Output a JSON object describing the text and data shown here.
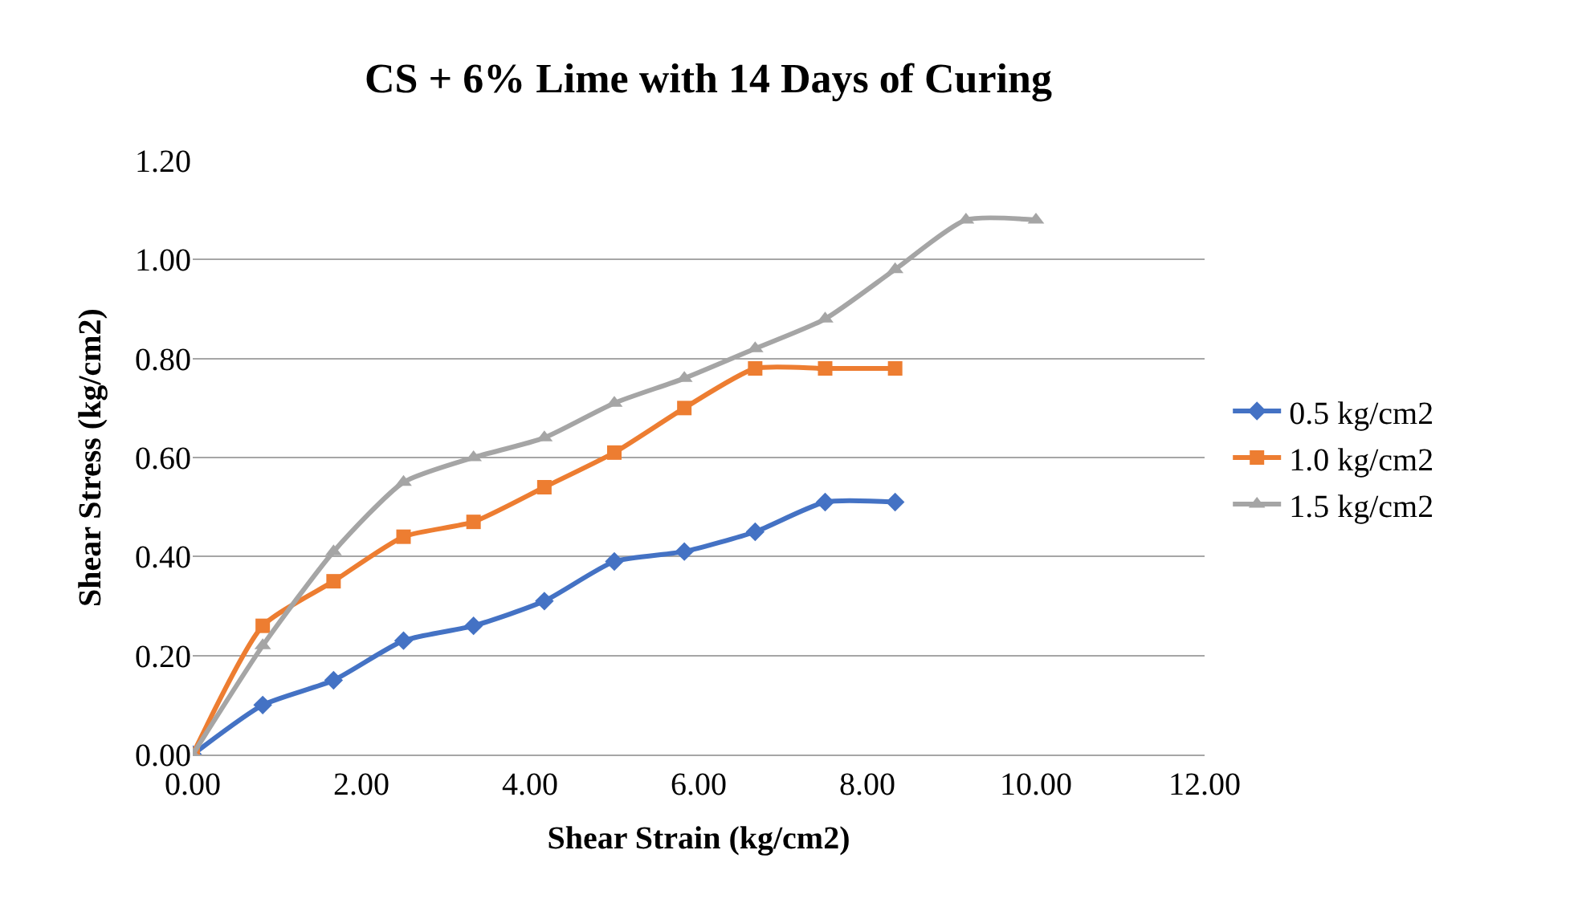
{
  "chart_data": {
    "type": "line",
    "title": "CS + 6% Lime with 14 Days of Curing",
    "xlabel": "Shear Strain (kg/cm2)",
    "ylabel": "Shear Stress (kg/cm2)",
    "xlim": [
      0,
      12
    ],
    "xticks": [
      {
        "value": 0,
        "label": "0.00"
      },
      {
        "value": 2,
        "label": "2.00"
      },
      {
        "value": 4,
        "label": "4.00"
      },
      {
        "value": 6,
        "label": "6.00"
      },
      {
        "value": 8,
        "label": "8.00"
      },
      {
        "value": 10,
        "label": "10.00"
      },
      {
        "value": 12,
        "label": "12.00"
      }
    ],
    "ylim": [
      0,
      1.2
    ],
    "yticks": [
      {
        "value": 0,
        "label": "0.00"
      },
      {
        "value": 0.2,
        "label": "0.20"
      },
      {
        "value": 0.4,
        "label": "0.40"
      },
      {
        "value": 0.6,
        "label": "0.60"
      },
      {
        "value": 0.8,
        "label": "0.80"
      },
      {
        "value": 1.0,
        "label": "1.00"
      },
      {
        "value": 1.2,
        "label": "1.20"
      }
    ],
    "grid": "y",
    "legend": "right",
    "series": [
      {
        "name": "0.5 kg/cm2",
        "color": "#4472c4",
        "marker": "diamond",
        "x": [
          0,
          0.83,
          1.67,
          2.5,
          3.33,
          4.17,
          5,
          5.83,
          6.67,
          7.5,
          8.33
        ],
        "values": [
          0,
          0.1,
          0.15,
          0.23,
          0.26,
          0.31,
          0.39,
          0.41,
          0.45,
          0.51,
          0.51
        ]
      },
      {
        "name": "1.0 kg/cm2",
        "color": "#ed7d31",
        "marker": "square",
        "x": [
          0,
          0.83,
          1.67,
          2.5,
          3.33,
          4.17,
          5,
          5.83,
          6.67,
          7.5,
          8.33
        ],
        "values": [
          0,
          0.26,
          0.35,
          0.44,
          0.47,
          0.54,
          0.61,
          0.7,
          0.78,
          0.78,
          0.78
        ]
      },
      {
        "name": "1.5 kg/cm2",
        "color": "#a5a5a5",
        "marker": "triangle",
        "x": [
          0,
          0.83,
          1.67,
          2.5,
          3.33,
          4.17,
          5,
          5.83,
          6.67,
          7.5,
          8.33,
          9.17,
          10
        ],
        "values": [
          0,
          0.22,
          0.41,
          0.55,
          0.6,
          0.64,
          0.71,
          0.76,
          0.82,
          0.88,
          0.98,
          1.08,
          1.08
        ]
      }
    ]
  }
}
